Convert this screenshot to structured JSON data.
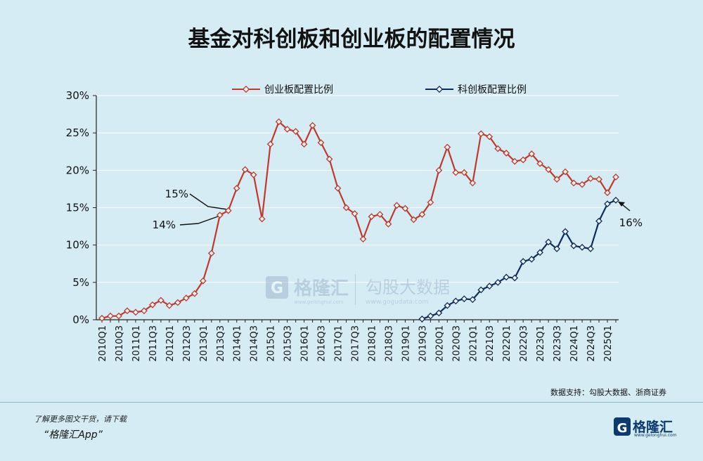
{
  "chart_data": {
    "type": "line",
    "title": "基金对科创板和创业板的配置情况",
    "source": "数据支持：勾股大数据、浙商证券",
    "watermark": {
      "brand": "格隆汇",
      "brand_url": "www.gelonghui.com",
      "name": "勾股大数据",
      "url": "www.gogudata.com"
    },
    "ylim": [
      0,
      30
    ],
    "yticks": [
      "0%",
      "5%",
      "10%",
      "15%",
      "20%",
      "25%",
      "30%"
    ],
    "x": [
      "2010Q1",
      "2010Q2",
      "2010Q3",
      "2010Q4",
      "2011Q1",
      "2011Q2",
      "2011Q3",
      "2011Q4",
      "2012Q1",
      "2012Q2",
      "2012Q3",
      "2012Q4",
      "2013Q1",
      "2013Q2",
      "2013Q3",
      "2013Q4",
      "2014Q1",
      "2014Q2",
      "2014Q3",
      "2014Q4",
      "2015Q1",
      "2015Q2",
      "2015Q3",
      "2015Q4",
      "2016Q1",
      "2016Q2",
      "2016Q3",
      "2016Q4",
      "2017Q1",
      "2017Q2",
      "2017Q3",
      "2017Q4",
      "2018Q1",
      "2018Q2",
      "2018Q3",
      "2018Q4",
      "2019Q1",
      "2019Q2",
      "2019Q3",
      "2019Q4",
      "2020Q1",
      "2020Q2",
      "2020Q3",
      "2020Q4",
      "2021Q1",
      "2021Q2",
      "2021Q3",
      "2021Q4",
      "2022Q1",
      "2022Q2",
      "2022Q3",
      "2022Q4",
      "2023Q1",
      "2023Q2",
      "2023Q3",
      "2023Q4",
      "2024Q1",
      "2024Q2",
      "2024Q3",
      "2024Q4",
      "2025Q1",
      "2025Q2"
    ],
    "xtick_labels": [
      "2010Q1",
      "2010Q3",
      "2011Q1",
      "2011Q3",
      "2012Q1",
      "2012Q3",
      "2013Q1",
      "2013Q3",
      "2014Q1",
      "2014Q3",
      "2015Q1",
      "2015Q3",
      "2016Q1",
      "2016Q3",
      "2017Q1",
      "2017Q3",
      "2018Q1",
      "2018Q3",
      "2019Q1",
      "2019Q3",
      "2020Q1",
      "2020Q3",
      "2021Q1",
      "2021Q3",
      "2022Q1",
      "2022Q3",
      "2023Q1",
      "2023Q3",
      "2024Q1",
      "2024Q3",
      "2025Q1"
    ],
    "legend_position": "top",
    "series": [
      {
        "name": "创业板配置比例",
        "color": "#c0392b",
        "values": [
          0.2,
          0.5,
          0.5,
          1.2,
          1.0,
          1.2,
          2.0,
          2.6,
          1.9,
          2.3,
          2.9,
          3.5,
          5.2,
          8.9,
          14.0,
          14.6,
          17.6,
          20.1,
          19.4,
          13.5,
          23.5,
          26.5,
          25.5,
          25.2,
          23.5,
          26.0,
          23.7,
          21.5,
          17.6,
          15.0,
          14.2,
          10.8,
          13.8,
          14.1,
          12.8,
          15.3,
          14.9,
          13.4,
          14.1,
          15.7,
          20.0,
          23.1,
          19.7,
          19.7,
          18.3,
          24.9,
          24.5,
          22.9,
          22.3,
          21.2,
          21.4,
          22.2,
          20.9,
          20.1,
          18.8,
          19.8,
          18.3,
          18.1,
          18.9,
          18.8,
          17.0,
          19.1
        ]
      },
      {
        "name": "科创板配置比例",
        "color": "#0d2c5a",
        "values": [
          null,
          null,
          null,
          null,
          null,
          null,
          null,
          null,
          null,
          null,
          null,
          null,
          null,
          null,
          null,
          null,
          null,
          null,
          null,
          null,
          null,
          null,
          null,
          null,
          null,
          null,
          null,
          null,
          null,
          null,
          null,
          null,
          null,
          null,
          null,
          null,
          null,
          null,
          0.1,
          0.5,
          0.9,
          1.9,
          2.5,
          2.8,
          2.7,
          4.0,
          4.5,
          5.0,
          5.7,
          5.6,
          7.8,
          8.1,
          9.0,
          10.4,
          9.5,
          11.8,
          9.9,
          9.7,
          9.5,
          13.2,
          15.5,
          16.0
        ]
      }
    ],
    "annotations": [
      {
        "text": "15%",
        "series": 0,
        "index": 15
      },
      {
        "text": "14%",
        "series": 0,
        "index": 14
      },
      {
        "text": "16%",
        "series": 1,
        "index": 61
      }
    ]
  },
  "footer": {
    "note": "了解更多图文干货，请下载",
    "app": "“格隆汇App”",
    "brand": "格隆汇",
    "brand_url": "www.gelonghui.com"
  }
}
